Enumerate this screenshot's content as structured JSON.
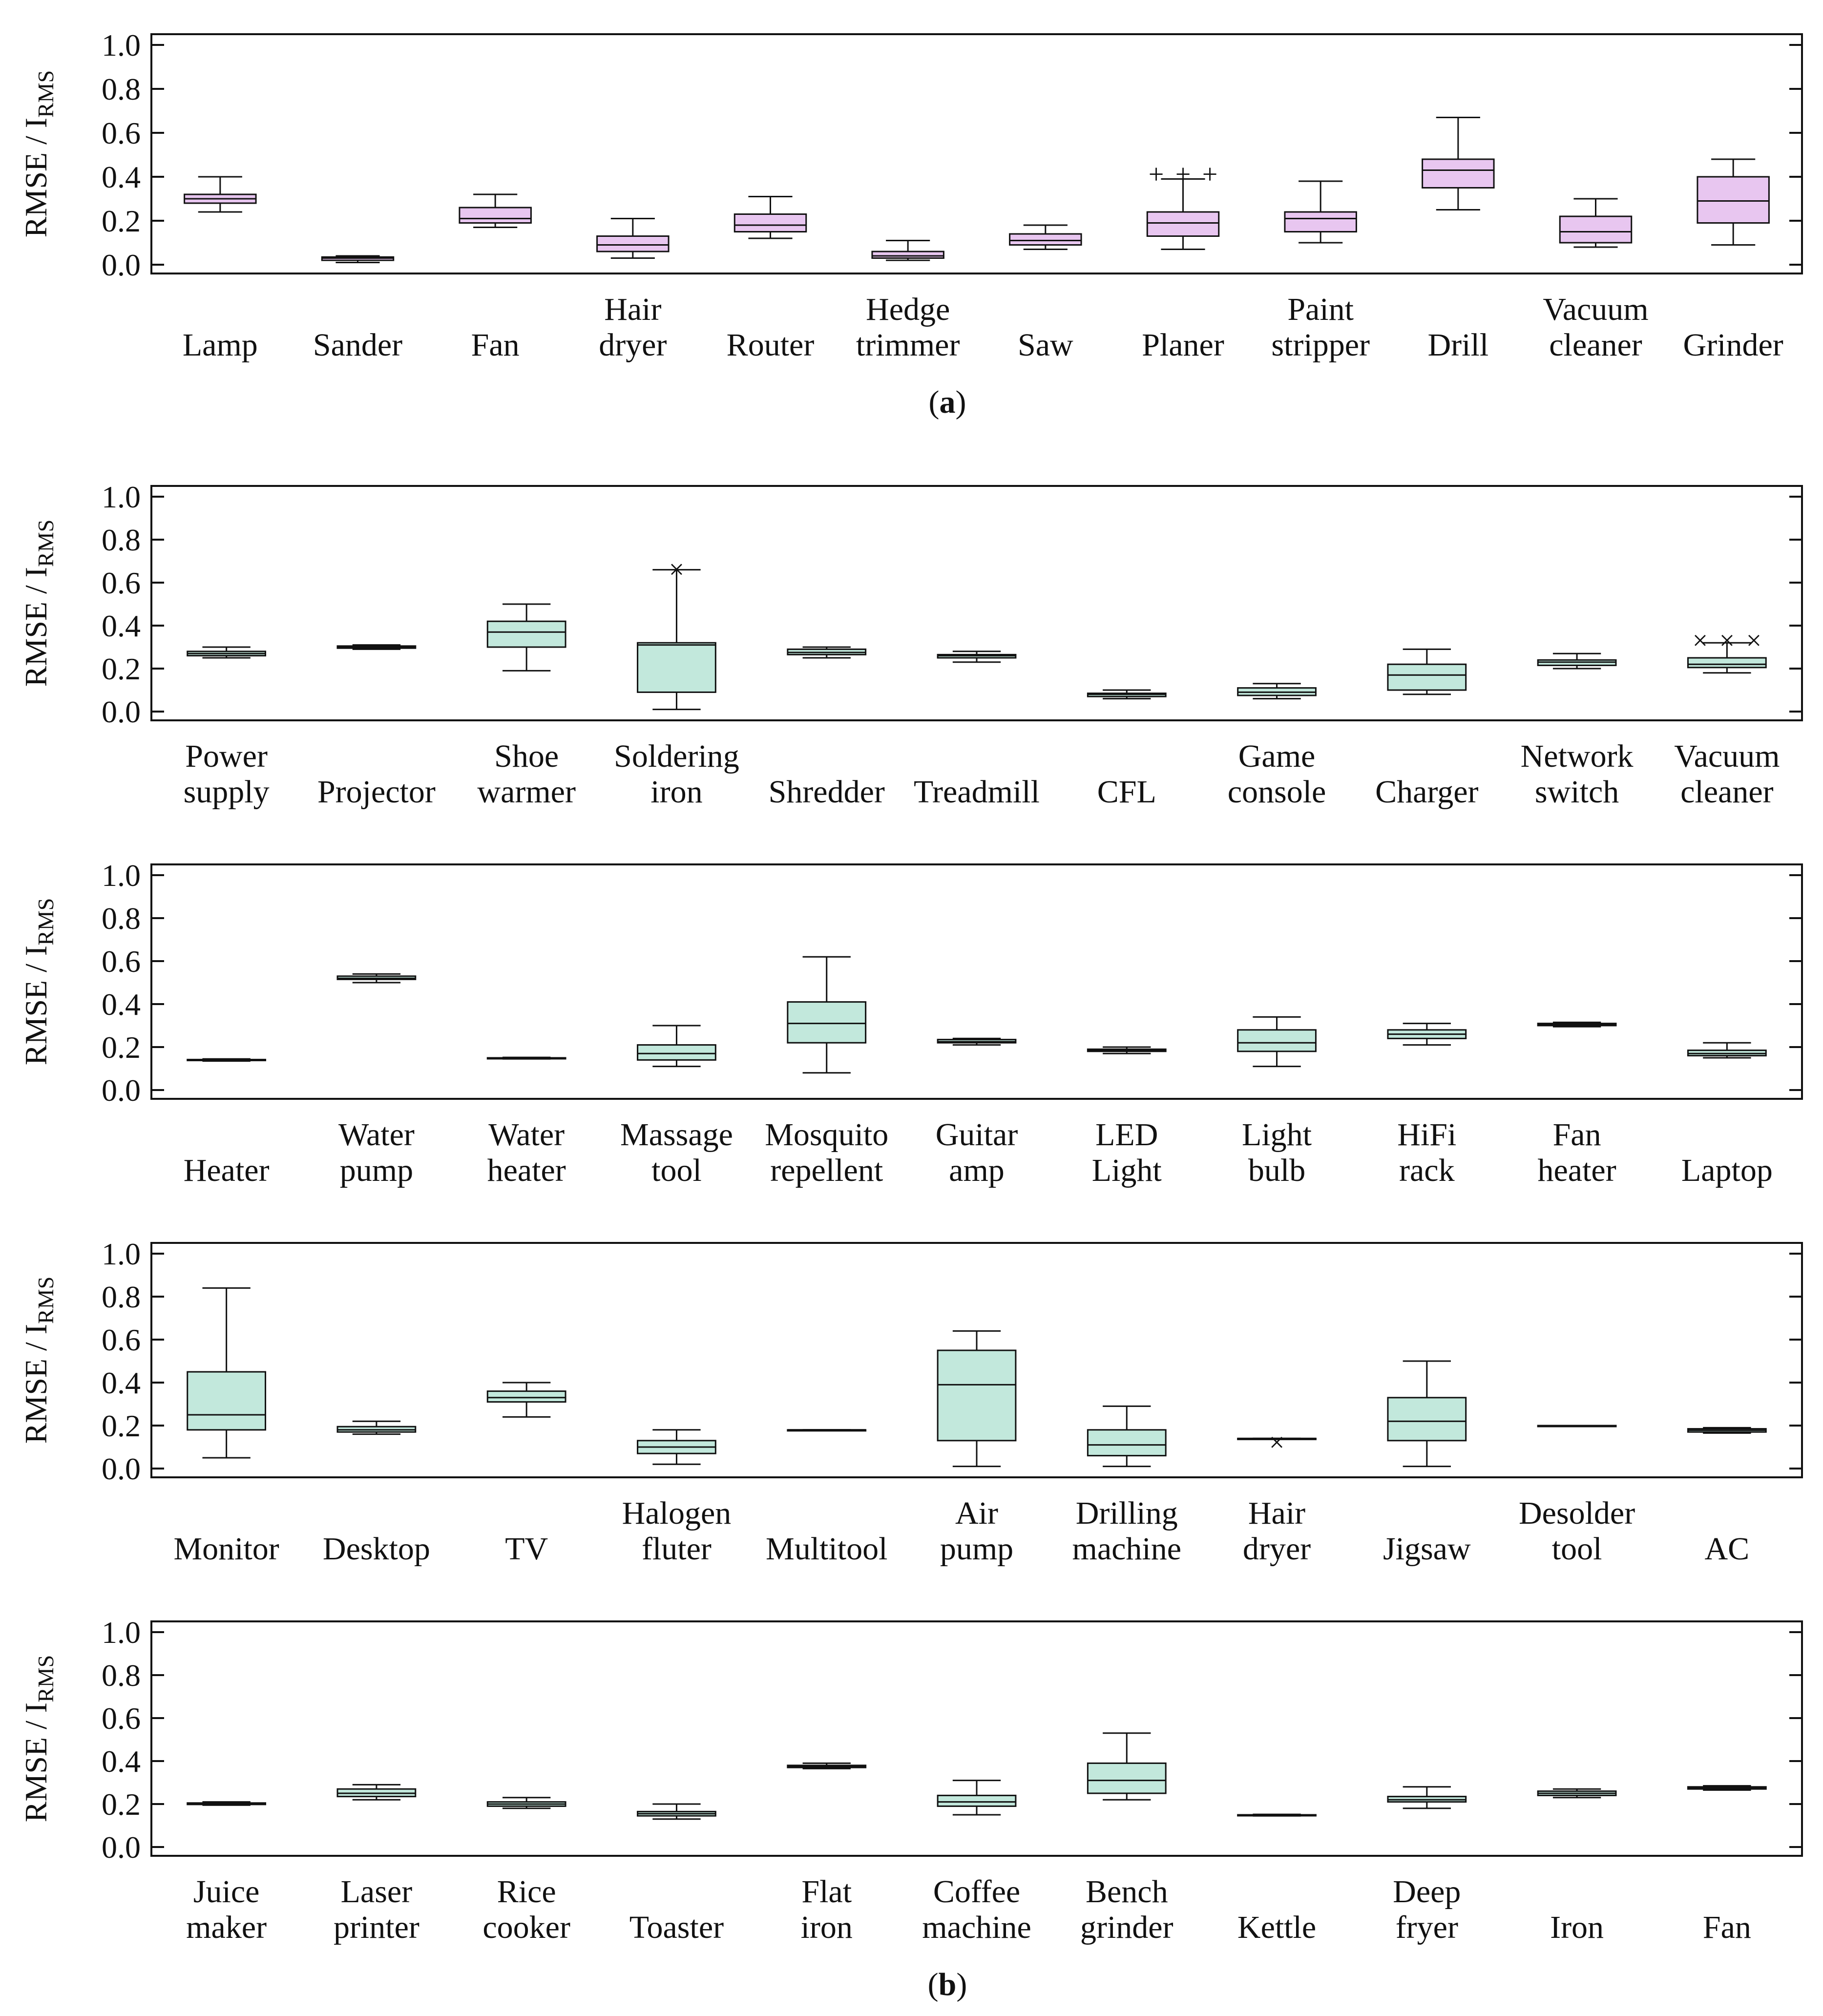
{
  "chart_data": [
    {
      "type": "box",
      "panel": "a",
      "caption_letter": "a",
      "ylabel": "RMSE / I",
      "ylabel_sub": "RMS",
      "ylim": [
        0.0,
        1.0
      ],
      "yticks": [
        "0.0",
        "0.2",
        "0.4",
        "0.6",
        "0.8",
        "1.0"
      ],
      "box_color": "#e8c6f0",
      "categories": [
        {
          "label": [
            "Lamp"
          ],
          "whisker_low": 0.24,
          "q1": 0.28,
          "median": 0.3,
          "q3": 0.32,
          "whisker_high": 0.4
        },
        {
          "label": [
            "Sander"
          ],
          "whisker_low": 0.01,
          "q1": 0.02,
          "median": 0.03,
          "q3": 0.035,
          "whisker_high": 0.04
        },
        {
          "label": [
            "Fan"
          ],
          "whisker_low": 0.17,
          "q1": 0.19,
          "median": 0.21,
          "q3": 0.26,
          "whisker_high": 0.32
        },
        {
          "label": [
            "Hair",
            "dryer"
          ],
          "whisker_low": 0.03,
          "q1": 0.06,
          "median": 0.09,
          "q3": 0.13,
          "whisker_high": 0.21
        },
        {
          "label": [
            "Router"
          ],
          "whisker_low": 0.12,
          "q1": 0.15,
          "median": 0.18,
          "q3": 0.23,
          "whisker_high": 0.31
        },
        {
          "label": [
            "Hedge",
            "trimmer"
          ],
          "whisker_low": 0.02,
          "q1": 0.03,
          "median": 0.04,
          "q3": 0.06,
          "whisker_high": 0.11
        },
        {
          "label": [
            "Saw"
          ],
          "whisker_low": 0.07,
          "q1": 0.09,
          "median": 0.11,
          "q3": 0.14,
          "whisker_high": 0.18
        },
        {
          "label": [
            "Planer"
          ],
          "whisker_low": 0.07,
          "q1": 0.13,
          "median": 0.19,
          "q3": 0.24,
          "whisker_high": 0.39,
          "outliers": [
            0.41,
            0.41,
            0.41
          ],
          "outlier_marker": "+"
        },
        {
          "label": [
            "Paint",
            "stripper"
          ],
          "whisker_low": 0.1,
          "q1": 0.15,
          "median": 0.21,
          "q3": 0.24,
          "whisker_high": 0.38
        },
        {
          "label": [
            "Drill"
          ],
          "whisker_low": 0.25,
          "q1": 0.35,
          "median": 0.43,
          "q3": 0.48,
          "whisker_high": 0.67
        },
        {
          "label": [
            "Vacuum",
            "cleaner"
          ],
          "whisker_low": 0.08,
          "q1": 0.1,
          "median": 0.15,
          "q3": 0.22,
          "whisker_high": 0.3
        },
        {
          "label": [
            "Grinder"
          ],
          "whisker_low": 0.09,
          "q1": 0.19,
          "median": 0.29,
          "q3": 0.4,
          "whisker_high": 0.48
        }
      ]
    },
    {
      "type": "box",
      "panel": "b-1",
      "ylabel": "RMSE / I",
      "ylabel_sub": "RMS",
      "ylim": [
        0.0,
        1.0
      ],
      "yticks": [
        "0.0",
        "0.2",
        "0.4",
        "0.6",
        "0.8",
        "1.0"
      ],
      "box_color": "#c2e8dc",
      "categories": [
        {
          "label": [
            "Power",
            "supply"
          ],
          "whisker_low": 0.25,
          "q1": 0.26,
          "median": 0.27,
          "q3": 0.28,
          "whisker_high": 0.3
        },
        {
          "label": [
            "Projector"
          ],
          "whisker_low": 0.29,
          "q1": 0.295,
          "median": 0.3,
          "q3": 0.305,
          "whisker_high": 0.31
        },
        {
          "label": [
            "Shoe",
            "warmer"
          ],
          "whisker_low": 0.19,
          "q1": 0.3,
          "median": 0.37,
          "q3": 0.42,
          "whisker_high": 0.5
        },
        {
          "label": [
            "Soldering",
            "iron"
          ],
          "whisker_low": 0.01,
          "q1": 0.09,
          "median": 0.31,
          "q3": 0.32,
          "whisker_high": 0.66,
          "outliers": [
            0.66
          ],
          "outlier_marker": "x"
        },
        {
          "label": [
            "Shredder"
          ],
          "whisker_low": 0.25,
          "q1": 0.265,
          "median": 0.275,
          "q3": 0.29,
          "whisker_high": 0.3
        },
        {
          "label": [
            "Treadmill"
          ],
          "whisker_low": 0.23,
          "q1": 0.25,
          "median": 0.26,
          "q3": 0.265,
          "whisker_high": 0.28
        },
        {
          "label": [
            "CFL"
          ],
          "whisker_low": 0.06,
          "q1": 0.07,
          "median": 0.08,
          "q3": 0.085,
          "whisker_high": 0.1
        },
        {
          "label": [
            "Game",
            "console"
          ],
          "whisker_low": 0.06,
          "q1": 0.075,
          "median": 0.09,
          "q3": 0.11,
          "whisker_high": 0.13
        },
        {
          "label": [
            "Charger"
          ],
          "whisker_low": 0.08,
          "q1": 0.1,
          "median": 0.17,
          "q3": 0.22,
          "whisker_high": 0.29
        },
        {
          "label": [
            "Network",
            "switch"
          ],
          "whisker_low": 0.2,
          "q1": 0.215,
          "median": 0.23,
          "q3": 0.24,
          "whisker_high": 0.27
        },
        {
          "label": [
            "Vacuum",
            "cleaner"
          ],
          "whisker_low": 0.18,
          "q1": 0.205,
          "median": 0.22,
          "q3": 0.25,
          "whisker_high": 0.32,
          "outliers": [
            0.33,
            0.33,
            0.33
          ],
          "outlier_marker": "x"
        }
      ]
    },
    {
      "type": "box",
      "panel": "b-2",
      "ylabel": "RMSE / I",
      "ylabel_sub": "RMS",
      "ylim": [
        0.0,
        1.0
      ],
      "yticks": [
        "0.0",
        "0.2",
        "0.4",
        "0.6",
        "0.8",
        "1.0"
      ],
      "box_color": "#c2e8dc",
      "categories": [
        {
          "label": [
            "Heater"
          ],
          "whisker_low": 0.135,
          "q1": 0.138,
          "median": 0.14,
          "q3": 0.142,
          "whisker_high": 0.145
        },
        {
          "label": [
            "Water",
            "pump"
          ],
          "whisker_low": 0.5,
          "q1": 0.515,
          "median": 0.52,
          "q3": 0.53,
          "whisker_high": 0.54
        },
        {
          "label": [
            "Water",
            "heater"
          ],
          "whisker_low": 0.145,
          "q1": 0.147,
          "median": 0.148,
          "q3": 0.15,
          "whisker_high": 0.152
        },
        {
          "label": [
            "Massage",
            "tool"
          ],
          "whisker_low": 0.11,
          "q1": 0.14,
          "median": 0.17,
          "q3": 0.21,
          "whisker_high": 0.3
        },
        {
          "label": [
            "Mosquito",
            "repellent"
          ],
          "whisker_low": 0.08,
          "q1": 0.22,
          "median": 0.31,
          "q3": 0.41,
          "whisker_high": 0.62
        },
        {
          "label": [
            "Guitar",
            "amp"
          ],
          "whisker_low": 0.21,
          "q1": 0.22,
          "median": 0.225,
          "q3": 0.235,
          "whisker_high": 0.24
        },
        {
          "label": [
            "LED",
            "Light"
          ],
          "whisker_low": 0.17,
          "q1": 0.18,
          "median": 0.185,
          "q3": 0.19,
          "whisker_high": 0.2
        },
        {
          "label": [
            "Light",
            "bulb"
          ],
          "whisker_low": 0.11,
          "q1": 0.18,
          "median": 0.22,
          "q3": 0.28,
          "whisker_high": 0.34
        },
        {
          "label": [
            "HiFi",
            "rack"
          ],
          "whisker_low": 0.21,
          "q1": 0.24,
          "median": 0.26,
          "q3": 0.28,
          "whisker_high": 0.31
        },
        {
          "label": [
            "Fan",
            "heater"
          ],
          "whisker_low": 0.295,
          "q1": 0.3,
          "median": 0.305,
          "q3": 0.31,
          "whisker_high": 0.315
        },
        {
          "label": [
            "Laptop"
          ],
          "whisker_low": 0.15,
          "q1": 0.16,
          "median": 0.17,
          "q3": 0.185,
          "whisker_high": 0.22
        }
      ]
    },
    {
      "type": "box",
      "panel": "b-3",
      "ylabel": "RMSE / I",
      "ylabel_sub": "RMS",
      "ylim": [
        0.0,
        1.0
      ],
      "yticks": [
        "0.0",
        "0.2",
        "0.4",
        "0.6",
        "0.8",
        "1.0"
      ],
      "box_color": "#c2e8dc",
      "categories": [
        {
          "label": [
            "Monitor"
          ],
          "whisker_low": 0.05,
          "q1": 0.18,
          "median": 0.25,
          "q3": 0.45,
          "whisker_high": 0.84
        },
        {
          "label": [
            "Desktop"
          ],
          "whisker_low": 0.16,
          "q1": 0.17,
          "median": 0.18,
          "q3": 0.195,
          "whisker_high": 0.22
        },
        {
          "label": [
            "TV"
          ],
          "whisker_low": 0.24,
          "q1": 0.31,
          "median": 0.33,
          "q3": 0.36,
          "whisker_high": 0.4
        },
        {
          "label": [
            "Halogen",
            "fluter"
          ],
          "whisker_low": 0.02,
          "q1": 0.07,
          "median": 0.1,
          "q3": 0.13,
          "whisker_high": 0.18
        },
        {
          "label": [
            "Multitool"
          ],
          "whisker_low": 0.18,
          "q1": 0.18,
          "median": 0.18,
          "q3": 0.18,
          "whisker_high": 0.18
        },
        {
          "label": [
            "Air",
            "pump"
          ],
          "whisker_low": 0.01,
          "q1": 0.13,
          "median": 0.39,
          "q3": 0.55,
          "whisker_high": 0.64
        },
        {
          "label": [
            "Drilling",
            "machine"
          ],
          "whisker_low": 0.01,
          "q1": 0.06,
          "median": 0.11,
          "q3": 0.18,
          "whisker_high": 0.29
        },
        {
          "label": [
            "Hair",
            "dryer"
          ],
          "whisker_low": 0.14,
          "q1": 0.14,
          "median": 0.14,
          "q3": 0.14,
          "whisker_high": 0.14,
          "outliers": [
            0.12
          ],
          "outlier_marker": "x"
        },
        {
          "label": [
            "Jigsaw"
          ],
          "whisker_low": 0.01,
          "q1": 0.13,
          "median": 0.22,
          "q3": 0.33,
          "whisker_high": 0.5
        },
        {
          "label": [
            "Desolder",
            "tool"
          ],
          "whisker_low": 0.2,
          "q1": 0.2,
          "median": 0.2,
          "q3": 0.2,
          "whisker_high": 0.2
        },
        {
          "label": [
            "AC"
          ],
          "whisker_low": 0.165,
          "q1": 0.17,
          "median": 0.178,
          "q3": 0.185,
          "whisker_high": 0.19
        }
      ]
    },
    {
      "type": "box",
      "panel": "b-4",
      "caption_letter": "b",
      "ylabel": "RMSE / I",
      "ylabel_sub": "RMS",
      "ylim": [
        0.0,
        1.0
      ],
      "yticks": [
        "0.0",
        "0.2",
        "0.4",
        "0.6",
        "0.8",
        "1.0"
      ],
      "box_color": "#c2e8dc",
      "categories": [
        {
          "label": [
            "Juice",
            "maker"
          ],
          "whisker_low": 0.195,
          "q1": 0.198,
          "median": 0.2,
          "q3": 0.205,
          "whisker_high": 0.21
        },
        {
          "label": [
            "Laser",
            "printer"
          ],
          "whisker_low": 0.22,
          "q1": 0.235,
          "median": 0.25,
          "q3": 0.27,
          "whisker_high": 0.29
        },
        {
          "label": [
            "Rice",
            "cooker"
          ],
          "whisker_low": 0.18,
          "q1": 0.19,
          "median": 0.2,
          "q3": 0.21,
          "whisker_high": 0.23
        },
        {
          "label": [
            "Toaster"
          ],
          "whisker_low": 0.13,
          "q1": 0.145,
          "median": 0.155,
          "q3": 0.165,
          "whisker_high": 0.2
        },
        {
          "label": [
            "Flat",
            "iron"
          ],
          "whisker_low": 0.365,
          "q1": 0.37,
          "median": 0.375,
          "q3": 0.38,
          "whisker_high": 0.39
        },
        {
          "label": [
            "Coffee",
            "machine"
          ],
          "whisker_low": 0.15,
          "q1": 0.19,
          "median": 0.21,
          "q3": 0.24,
          "whisker_high": 0.31
        },
        {
          "label": [
            "Bench",
            "grinder"
          ],
          "whisker_low": 0.22,
          "q1": 0.25,
          "median": 0.31,
          "q3": 0.39,
          "whisker_high": 0.53
        },
        {
          "label": [
            "Kettle"
          ],
          "whisker_low": 0.145,
          "q1": 0.147,
          "median": 0.148,
          "q3": 0.15,
          "whisker_high": 0.152
        },
        {
          "label": [
            "Deep",
            "fryer"
          ],
          "whisker_low": 0.18,
          "q1": 0.21,
          "median": 0.22,
          "q3": 0.235,
          "whisker_high": 0.28
        },
        {
          "label": [
            "Iron"
          ],
          "whisker_low": 0.23,
          "q1": 0.24,
          "median": 0.25,
          "q3": 0.26,
          "whisker_high": 0.27
        },
        {
          "label": [
            "Fan"
          ],
          "whisker_low": 0.265,
          "q1": 0.27,
          "median": 0.275,
          "q3": 0.28,
          "whisker_high": 0.285
        }
      ]
    }
  ]
}
